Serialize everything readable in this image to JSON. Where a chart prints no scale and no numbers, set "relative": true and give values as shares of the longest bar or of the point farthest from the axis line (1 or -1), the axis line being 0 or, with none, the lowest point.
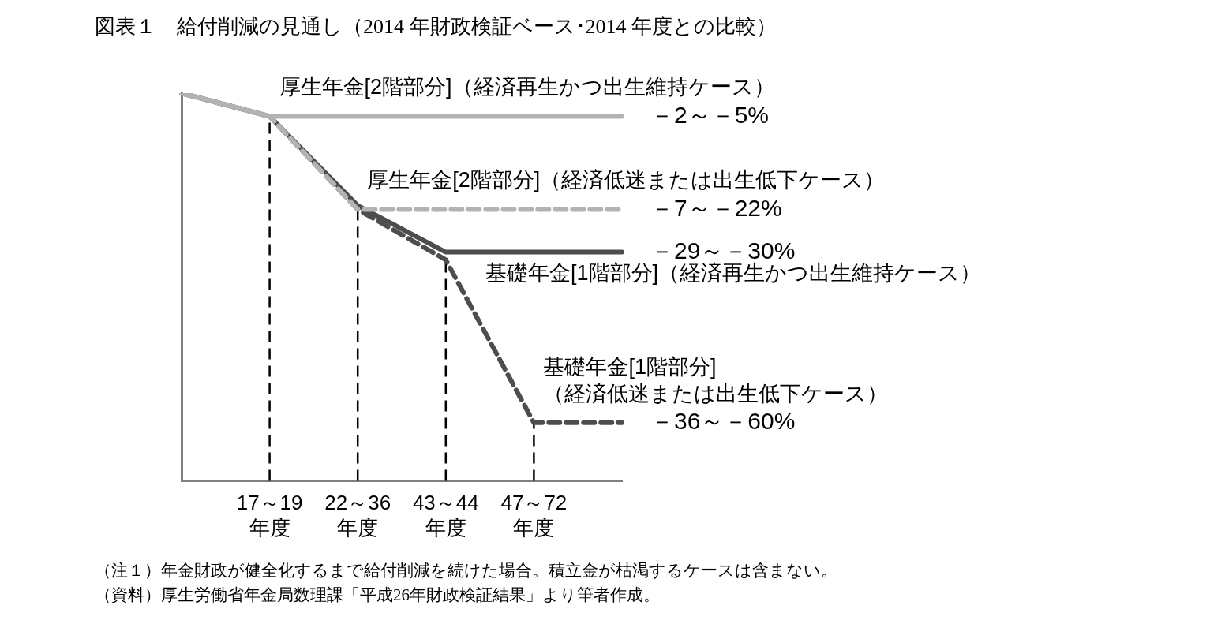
{
  "chart_data": {
    "type": "line",
    "title": "図表１　給付削減の見通し（2014 年財政検証ベース･2014 年度との比較）",
    "relative": true,
    "grid": false,
    "legend": false,
    "marker": "none",
    "categories": [
      null,
      "17～19\n年度",
      "22～36\n年度",
      "43～44\n年度",
      "47～72\n年度",
      null
    ],
    "series": [
      {
        "name": "厚生年金[2階部分]（経済再生かつ出生維持ケース）",
        "color": "#b3b3b3",
        "line_style": "solid",
        "values": [
          1,
          0.94,
          0.94,
          0.94,
          0.94,
          0.94
        ]
      },
      {
        "name": "厚生年金[2階部分]（経済低迷または出生低下ケース）",
        "color": "#b3b3b3",
        "line_style": "dashed",
        "values": [
          1,
          0.94,
          0.7,
          0.7,
          0.7,
          0.7
        ]
      },
      {
        "name": "基礎年金[1階部分]（経済再生かつ出生維持ケース）",
        "color": "#4d4d4d",
        "line_style": "solid",
        "values": [
          1,
          0.94,
          0.71,
          0.59,
          0.59,
          0.59
        ]
      },
      {
        "name": "基礎年金[1階部分]（経済低迷または出生低下ケース）",
        "color": "#4d4d4d",
        "line_style": "dashed",
        "values": [
          1,
          0.94,
          0.7,
          0.57,
          0.15,
          0.15
        ]
      }
    ],
    "ref_lines": [
      {
        "axis": "x",
        "value": "17～19\n年度",
        "line_style": "dashed",
        "color": "#000000"
      },
      {
        "axis": "x",
        "value": "22～36\n年度",
        "line_style": "dashed",
        "color": "#000000"
      },
      {
        "axis": "x",
        "value": "43～44\n年度",
        "line_style": "dashed",
        "color": "#000000"
      },
      {
        "axis": "x",
        "value": "47～72\n年度",
        "line_style": "dashed",
        "color": "#000000"
      }
    ],
    "annotations": [
      "－2～－5%",
      "－7～－22%",
      "－29～－30%",
      "－36～－60%",
      "（注１）年金財政が健全化するまで給付削減を続けた場合。積立金が枯渇するケースは含まない。",
      "（資料）厚生労働省年金局数理課「平成26年財政検証結果」より筆者作成。"
    ]
  }
}
